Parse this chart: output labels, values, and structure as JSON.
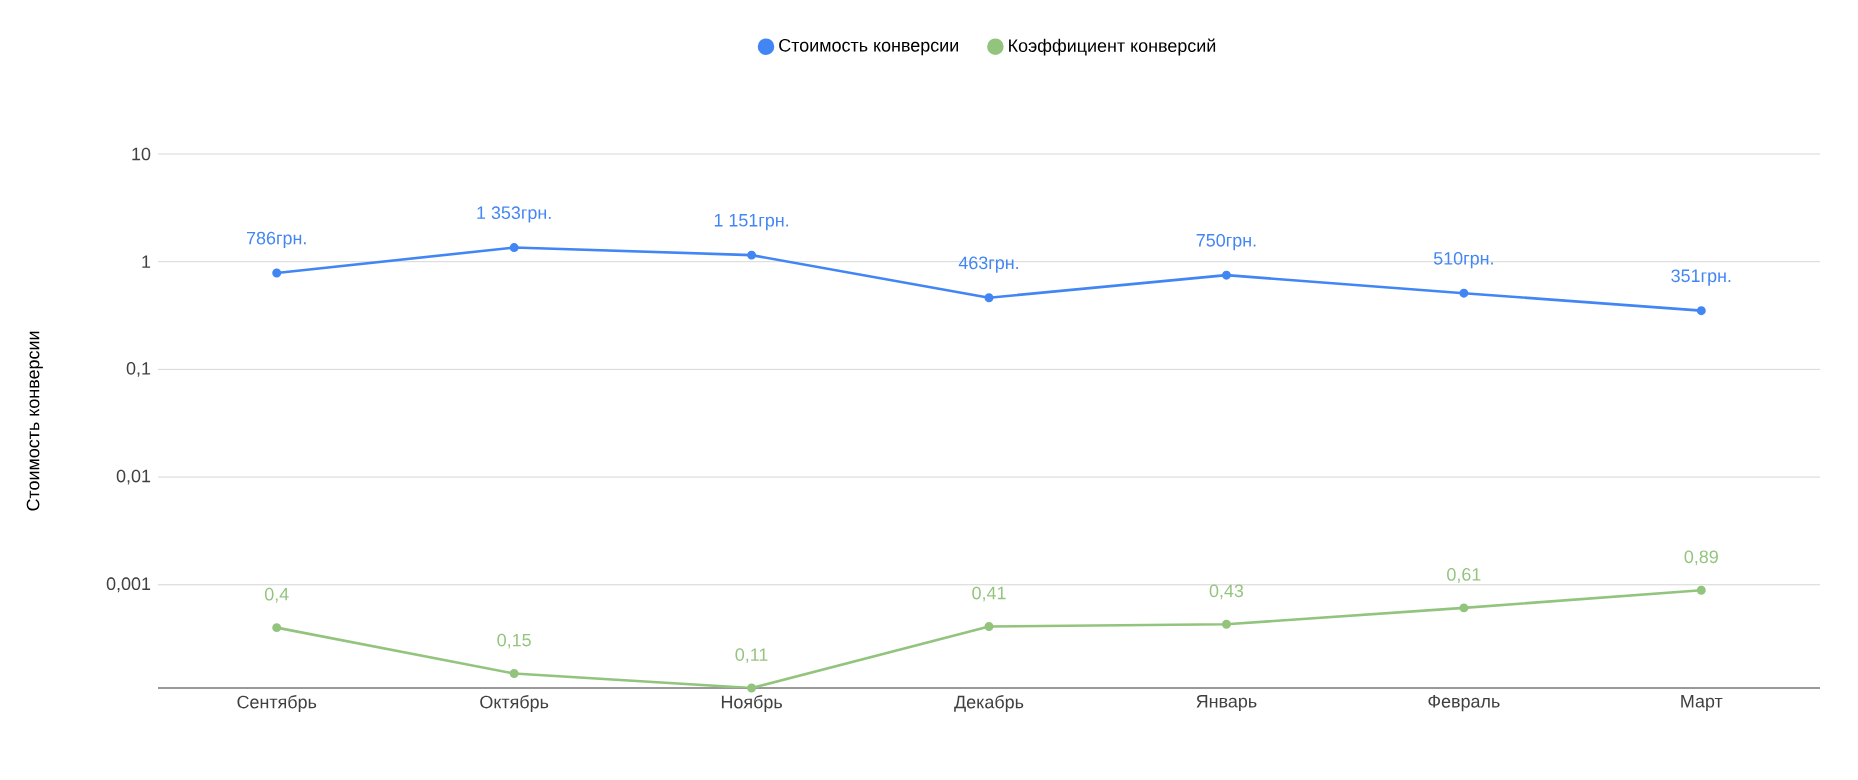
{
  "chart_data": {
    "type": "line",
    "ylabel": "Стоимость конверсии",
    "categories": [
      "Сентябрь",
      "Октябрь",
      "Ноябрь",
      "Декабрь",
      "Январь",
      "Февраль",
      "Март"
    ],
    "series": [
      {
        "name": "Стоимость конверсии",
        "color": "#4285f4",
        "values": [
          0.786,
          1.353,
          1.151,
          0.463,
          0.75,
          0.51,
          0.351
        ]
      },
      {
        "name": "Коэффициент конверсий",
        "color": "#93c47d",
        "values": [
          0.0004,
          0.00015,
          0.00011,
          0.00041,
          0.00043,
          0.00061,
          0.00089
        ]
      }
    ],
    "annotations": [
      "786грн.",
      "1 353грн.",
      "1 151грн.",
      "463грн.",
      "750грн.",
      "510грн.",
      "351грн.",
      "0,4",
      "0,15",
      "0,11",
      "0,41",
      "0,43",
      "0,61",
      "0,89"
    ],
    "log": "y",
    "ylim": [
      0.00011,
      10
    ],
    "yticks": [
      {
        "value": 0.001,
        "label": "0,001"
      },
      {
        "value": 0.01,
        "label": "0,01"
      },
      {
        "value": 0.1,
        "label": "0,1"
      },
      1,
      10
    ],
    "grid": "y",
    "legend": "top",
    "marker": "circle",
    "line_style": "solid"
  }
}
